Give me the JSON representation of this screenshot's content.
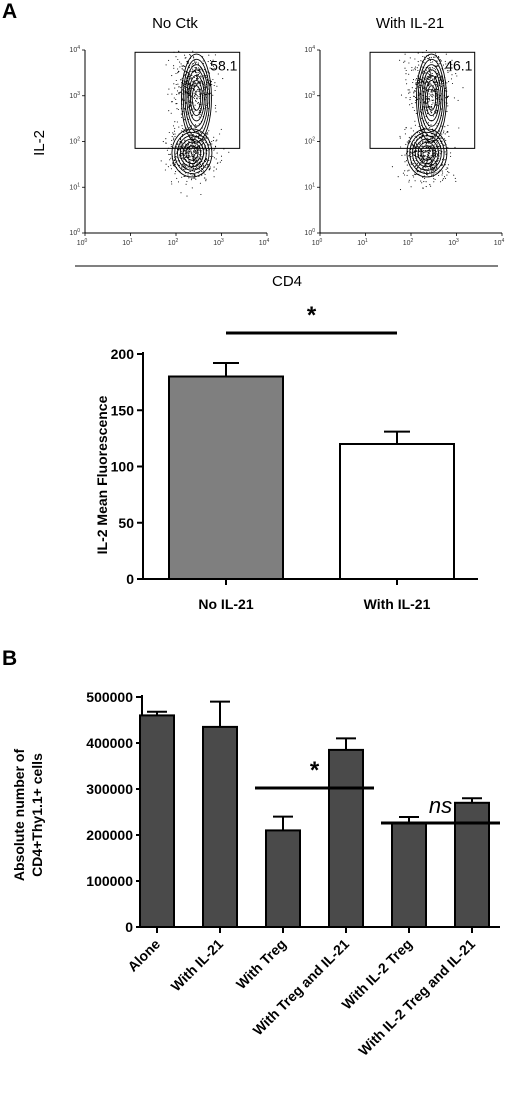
{
  "panel_labels": {
    "a": "A",
    "b": "B"
  },
  "flow": {
    "y_label": "IL-2",
    "x_label": "CD4",
    "tick_labels": [
      "10",
      "10",
      "10",
      "10",
      "10"
    ],
    "tick_exponents": [
      "0",
      "1",
      "2",
      "3",
      "4"
    ],
    "plots": [
      {
        "title": "No Ctk",
        "gate_percent": "58.1"
      },
      {
        "title": "With IL-21",
        "gate_percent": "46.1"
      }
    ]
  },
  "chart_data": [
    {
      "type": "bar",
      "categories": [
        "No IL-21",
        "With IL-21"
      ],
      "values": [
        180,
        120
      ],
      "errors": [
        12,
        11
      ],
      "bar_colors": [
        "#7f7f7f",
        "#ffffff"
      ],
      "ylabel": "IL-2 Mean Fluorescence",
      "xlabel": "",
      "ylim": [
        0,
        200
      ],
      "yticks": [
        0,
        50,
        100,
        150,
        200
      ],
      "significance": [
        {
          "label": "*",
          "between": [
            0,
            1
          ]
        }
      ]
    },
    {
      "type": "bar",
      "categories": [
        "Alone",
        "With IL-21",
        "With Treg",
        "With Treg and IL-21",
        "With IL-2 Treg",
        "With IL-2 Treg and IL-21"
      ],
      "values": [
        460000,
        435000,
        210000,
        385000,
        225000,
        270000
      ],
      "errors": [
        8000,
        55000,
        30000,
        25000,
        14000,
        10000
      ],
      "bar_colors": [
        "#4a4a4a"
      ],
      "ylabel": "Absolute number of CD4+Thy1.1+ cells",
      "xlabel": "",
      "ylim": [
        0,
        500000
      ],
      "yticks": [
        0,
        100000,
        200000,
        300000,
        400000,
        500000
      ],
      "significance": [
        {
          "label": "*",
          "between": [
            2,
            3
          ]
        },
        {
          "label": "ns",
          "between": [
            4,
            5
          ]
        }
      ]
    }
  ]
}
